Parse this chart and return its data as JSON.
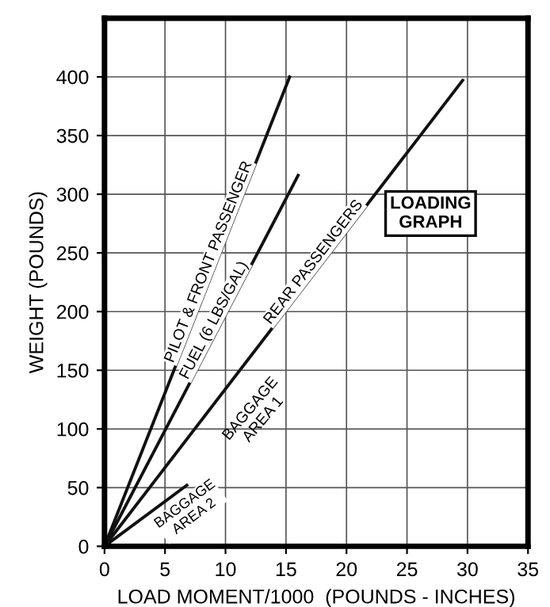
{
  "chart_data": {
    "type": "line",
    "xlabel": "LOAD MOMENT/1000  (POUNDS - INCHES)",
    "ylabel": "WEIGHT (POUNDS)",
    "series": [
      {
        "name": "PILOT & FRONT PASSENGER",
        "color": "#111111",
        "x": [
          0,
          15.3
        ],
        "values": [
          0,
          400
        ]
      },
      {
        "name": "FUEL (6 LBS/GAL)",
        "color": "#111111",
        "x": [
          0,
          16
        ],
        "values": [
          0,
          316
        ]
      },
      {
        "name": "REAR PASSENGERS",
        "color": "#111111",
        "x": [
          0,
          29.6
        ],
        "values": [
          0,
          397
        ]
      },
      {
        "name": "BAGGAGE AREA 2",
        "color": "#111111",
        "x": [
          0,
          6.8
        ],
        "values": [
          0,
          52
        ]
      }
    ],
    "annotations": [
      "BAGGAGE\nAREA 1",
      "LOADING\nGRAPH"
    ],
    "xlim": [
      0,
      35
    ],
    "ylim": [
      0,
      450
    ],
    "xticks": [
      0,
      5,
      10,
      15,
      20,
      25,
      30,
      35
    ],
    "yticks": [
      0,
      50,
      100,
      150,
      200,
      250,
      300,
      350,
      400
    ],
    "grid": true,
    "marker": "none",
    "line_style": "solid",
    "legend": false
  }
}
